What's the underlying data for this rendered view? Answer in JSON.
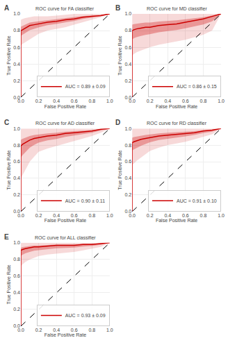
{
  "chart_data": [
    {
      "type": "line",
      "title": "ROC curve for FA classifier",
      "annotations": [
        "A"
      ],
      "xlabel": "False Positive Rate",
      "ylabel": "True Positive Rate",
      "x": [
        0.0,
        0.0,
        0.02,
        0.05,
        0.1,
        0.15,
        0.2,
        0.3,
        0.4,
        0.5,
        0.6,
        0.7,
        0.8,
        0.9,
        1.0
      ],
      "series": [
        {
          "name": "AUC = 0.89 ± 0.09",
          "color": "#cc0000",
          "values": [
            0.0,
            0.8,
            0.81,
            0.83,
            0.86,
            0.87,
            0.88,
            0.9,
            0.91,
            0.93,
            0.94,
            0.96,
            0.97,
            0.98,
            1.0
          ],
          "band_upper": [
            0.0,
            0.93,
            0.94,
            0.95,
            0.96,
            0.97,
            0.97,
            0.97,
            0.98,
            0.99,
            1.0,
            1.0,
            1.0,
            1.0,
            1.0
          ],
          "band_lower": [
            0.0,
            0.62,
            0.64,
            0.66,
            0.7,
            0.73,
            0.76,
            0.8,
            0.82,
            0.84,
            0.87,
            0.9,
            0.93,
            0.96,
            1.0
          ],
          "inner_band_upper": [
            0.0,
            0.8455,
            0.8555,
            0.872,
            0.895,
            0.905,
            0.9115,
            0.9245,
            0.9345,
            0.951,
            0.961,
            0.974,
            0.9805,
            0.987,
            1.0
          ],
          "inner_band_lower": [
            0.0,
            0.737,
            0.7505,
            0.7705,
            0.804,
            0.821,
            0.838,
            0.865,
            0.8785,
            0.8985,
            0.9155,
            0.939,
            0.956,
            0.973,
            1.0
          ]
        }
      ],
      "reference_line": {
        "x": [
          0,
          1
        ],
        "y": [
          0,
          1
        ]
      },
      "xlim": [
        0,
        1
      ],
      "ylim": [
        0,
        1
      ],
      "xticks": [
        {
          "value": 0,
          "label": "0.0"
        },
        0.2,
        0.4,
        0.6,
        0.8,
        {
          "value": 1,
          "label": "1.0"
        }
      ],
      "yticks": [
        {
          "value": 0,
          "label": "0.0"
        },
        0.2,
        0.4,
        0.6,
        0.8,
        {
          "value": 1,
          "label": "1.0"
        }
      ],
      "grid": true,
      "legend": "lower right"
    },
    {
      "type": "line",
      "title": "ROC curve for MD classifier",
      "annotations": [
        "B"
      ],
      "xlabel": "False Positive Rate",
      "ylabel": "True Positive Rate",
      "x": [
        0.0,
        0.0,
        0.02,
        0.05,
        0.1,
        0.15,
        0.2,
        0.3,
        0.4,
        0.5,
        0.6,
        0.7,
        0.8,
        0.9,
        1.0
      ],
      "series": [
        {
          "name": "AUC = 0.86 ± 0.15",
          "color": "#cc0000",
          "values": [
            0.0,
            0.8,
            0.81,
            0.82,
            0.83,
            0.84,
            0.84,
            0.86,
            0.87,
            0.88,
            0.9,
            0.92,
            0.94,
            0.97,
            1.0
          ],
          "band_upper": [
            0.0,
            1.0,
            1.0,
            1.0,
            1.0,
            1.0,
            1.0,
            1.0,
            1.0,
            1.0,
            1.0,
            1.0,
            1.0,
            1.0,
            1.0
          ],
          "band_lower": [
            0.0,
            0.5,
            0.52,
            0.54,
            0.56,
            0.58,
            0.6,
            0.63,
            0.65,
            0.67,
            0.69,
            0.72,
            0.75,
            0.8,
            1.0
          ],
          "inner_band_upper": [
            0.0,
            0.87,
            0.8765,
            0.883,
            0.8895,
            0.896,
            0.896,
            0.909,
            0.9155,
            0.922,
            0.935,
            0.948,
            0.961,
            0.9805,
            1.0
          ],
          "inner_band_lower": [
            0.0,
            0.695,
            0.7085,
            0.722,
            0.7355,
            0.749,
            0.756,
            0.7795,
            0.793,
            0.8065,
            0.8265,
            0.85,
            0.8735,
            0.9105,
            1.0
          ]
        }
      ],
      "reference_line": {
        "x": [
          0,
          1
        ],
        "y": [
          0,
          1
        ]
      },
      "xlim": [
        0,
        1
      ],
      "ylim": [
        0,
        1
      ],
      "xticks": [
        {
          "value": 0,
          "label": "0.0"
        },
        0.2,
        0.4,
        0.6,
        0.8,
        {
          "value": 1,
          "label": "1.0"
        }
      ],
      "yticks": [
        {
          "value": 0,
          "label": "0.0"
        },
        0.2,
        0.4,
        0.6,
        0.8,
        {
          "value": 1,
          "label": "1.0"
        }
      ],
      "grid": true,
      "legend": "lower right"
    },
    {
      "type": "line",
      "title": "ROC curve for AD classifier",
      "annotations": [
        "C"
      ],
      "xlabel": "False Positive Rate",
      "ylabel": "True Positive Rate",
      "x": [
        0.0,
        0.0,
        0.02,
        0.05,
        0.1,
        0.15,
        0.2,
        0.3,
        0.4,
        0.5,
        0.6,
        0.7,
        0.8,
        0.9,
        1.0
      ],
      "series": [
        {
          "name": "AUC = 0.90 ± 0.11",
          "color": "#cc0000",
          "values": [
            0.0,
            0.79,
            0.81,
            0.83,
            0.86,
            0.88,
            0.89,
            0.91,
            0.92,
            0.94,
            0.95,
            0.96,
            0.97,
            0.99,
            1.0
          ],
          "band_upper": [
            0.0,
            1.0,
            1.0,
            1.0,
            1.0,
            1.0,
            1.0,
            1.0,
            1.0,
            1.0,
            1.0,
            1.0,
            1.0,
            1.0,
            1.0
          ],
          "band_lower": [
            0.0,
            0.4,
            0.44,
            0.5,
            0.6,
            0.66,
            0.72,
            0.76,
            0.79,
            0.82,
            0.85,
            0.88,
            0.91,
            0.95,
            1.0
          ],
          "inner_band_upper": [
            0.0,
            0.8635,
            0.8765,
            0.8895,
            0.909,
            0.922,
            0.9285,
            0.9415,
            0.948,
            0.961,
            0.9675,
            0.974,
            0.9805,
            0.9935,
            1.0
          ],
          "inner_band_lower": [
            0.0,
            0.6535,
            0.6805,
            0.7145,
            0.769,
            0.803,
            0.8305,
            0.8575,
            0.8745,
            0.898,
            0.915,
            0.932,
            0.949,
            0.976,
            1.0
          ]
        }
      ],
      "reference_line": {
        "x": [
          0,
          1
        ],
        "y": [
          0,
          1
        ]
      },
      "xlim": [
        0,
        1
      ],
      "ylim": [
        0,
        1
      ],
      "xticks": [
        {
          "value": 0,
          "label": "0.0"
        },
        0.2,
        0.4,
        0.6,
        0.8,
        {
          "value": 1,
          "label": "1.0"
        }
      ],
      "yticks": [
        {
          "value": 0,
          "label": "0.0"
        },
        0.2,
        0.4,
        0.6,
        0.8,
        {
          "value": 1,
          "label": "1.0"
        }
      ],
      "grid": true,
      "legend": "lower right"
    },
    {
      "type": "line",
      "title": "ROC curve for RD classifier",
      "annotations": [
        "D"
      ],
      "xlabel": "False Positive Rate",
      "ylabel": "True Positive Rate",
      "x": [
        0.0,
        0.0,
        0.02,
        0.05,
        0.1,
        0.15,
        0.2,
        0.3,
        0.4,
        0.5,
        0.6,
        0.7,
        0.8,
        0.9,
        1.0
      ],
      "series": [
        {
          "name": "AUC = 0.91 ± 0.10",
          "color": "#cc0000",
          "values": [
            0.0,
            0.83,
            0.84,
            0.85,
            0.87,
            0.88,
            0.89,
            0.91,
            0.92,
            0.93,
            0.94,
            0.95,
            0.97,
            0.98,
            1.0
          ],
          "band_upper": [
            0.0,
            1.0,
            1.0,
            1.0,
            1.0,
            1.0,
            1.0,
            1.0,
            1.0,
            1.0,
            1.0,
            1.0,
            1.0,
            1.0,
            1.0
          ],
          "band_lower": [
            0.0,
            0.56,
            0.58,
            0.61,
            0.65,
            0.69,
            0.73,
            0.77,
            0.8,
            0.82,
            0.84,
            0.87,
            0.9,
            0.93,
            1.0
          ],
          "inner_band_upper": [
            0.0,
            0.8895,
            0.896,
            0.9025,
            0.9155,
            0.922,
            0.9285,
            0.9415,
            0.948,
            0.9545,
            0.961,
            0.9675,
            0.9805,
            0.987,
            1.0
          ],
          "inner_band_lower": [
            0.0,
            0.7355,
            0.749,
            0.766,
            0.793,
            0.8135,
            0.834,
            0.861,
            0.878,
            0.8915,
            0.905,
            0.922,
            0.9455,
            0.9625,
            1.0
          ]
        }
      ],
      "reference_line": {
        "x": [
          0,
          1
        ],
        "y": [
          0,
          1
        ]
      },
      "xlim": [
        0,
        1
      ],
      "ylim": [
        0,
        1
      ],
      "xticks": [
        {
          "value": 0,
          "label": "0.0"
        },
        0.2,
        0.4,
        0.6,
        0.8,
        {
          "value": 1,
          "label": "1.0"
        }
      ],
      "yticks": [
        {
          "value": 0,
          "label": "0.0"
        },
        0.2,
        0.4,
        0.6,
        0.8,
        {
          "value": 1,
          "label": "1.0"
        }
      ],
      "grid": true,
      "legend": "lower right"
    },
    {
      "type": "line",
      "title": "ROC curve for ALL classifier",
      "annotations": [
        "E"
      ],
      "xlabel": "False Positive Rate",
      "ylabel": "True Positive Rate",
      "x": [
        0.0,
        0.0,
        0.02,
        0.05,
        0.1,
        0.15,
        0.2,
        0.3,
        0.4,
        0.5,
        0.6,
        0.7,
        0.8,
        0.9,
        1.0
      ],
      "series": [
        {
          "name": "AUC = 0.93 ± 0.09",
          "color": "#cc0000",
          "values": [
            0.0,
            0.91,
            0.92,
            0.93,
            0.94,
            0.95,
            0.95,
            0.96,
            0.97,
            0.97,
            0.97,
            0.98,
            0.98,
            0.99,
            1.0
          ],
          "band_upper": [
            0.0,
            1.0,
            1.0,
            1.0,
            1.0,
            1.0,
            1.0,
            1.0,
            1.0,
            1.0,
            1.0,
            1.0,
            1.0,
            1.0,
            1.0
          ],
          "band_lower": [
            0.0,
            0.72,
            0.74,
            0.77,
            0.8,
            0.82,
            0.84,
            0.86,
            0.87,
            0.88,
            0.89,
            0.91,
            0.93,
            0.95,
            1.0
          ],
          "inner_band_upper": [
            0.0,
            0.9415,
            0.948,
            0.9545,
            0.961,
            0.9675,
            0.9675,
            0.974,
            0.9805,
            0.9805,
            0.9805,
            0.987,
            0.987,
            0.9935,
            1.0
          ],
          "inner_band_lower": [
            0.0,
            0.8435,
            0.857,
            0.874,
            0.891,
            0.9045,
            0.9115,
            0.925,
            0.935,
            0.9385,
            0.942,
            0.9555,
            0.9625,
            0.976,
            1.0
          ]
        }
      ],
      "reference_line": {
        "x": [
          0,
          1
        ],
        "y": [
          0,
          1
        ]
      },
      "xlim": [
        0,
        1
      ],
      "ylim": [
        0,
        1
      ],
      "xticks": [
        {
          "value": 0,
          "label": "0.0"
        },
        0.2,
        0.4,
        0.6,
        0.8,
        {
          "value": 1,
          "label": "1.0"
        }
      ],
      "yticks": [
        {
          "value": 0,
          "label": "0.0"
        },
        0.2,
        0.4,
        0.6,
        0.8,
        {
          "value": 1,
          "label": "1.0"
        }
      ],
      "grid": true,
      "legend": "lower right"
    }
  ]
}
